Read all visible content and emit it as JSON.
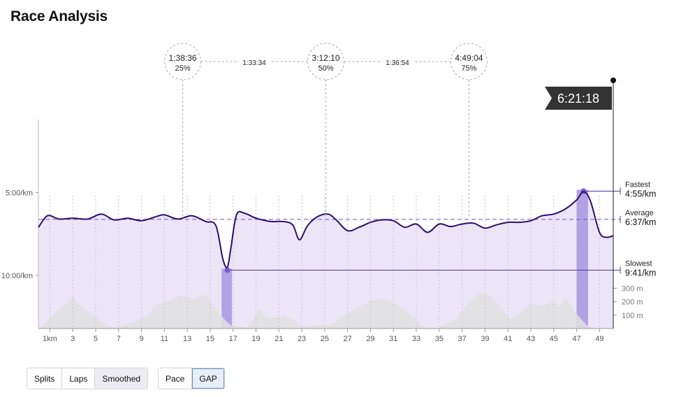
{
  "page": {
    "title": "Race Analysis"
  },
  "controls": {
    "view_buttons": [
      "Splits",
      "Laps",
      "Smoothed"
    ],
    "metric_buttons": [
      "Pace",
      "GAP"
    ],
    "active_view": "Smoothed",
    "active_metric": "GAP"
  },
  "chart_data": {
    "type": "line",
    "title": "",
    "x_unit": "km",
    "xlim": [
      0,
      50.2
    ],
    "x_ticks": [
      1,
      3,
      5,
      7,
      9,
      11,
      13,
      15,
      17,
      19,
      21,
      23,
      25,
      27,
      29,
      31,
      33,
      35,
      37,
      39,
      41,
      43,
      45,
      47,
      49
    ],
    "x_tick_labels": [
      "1km",
      "3",
      "5",
      "7",
      "9",
      "11",
      "13",
      "15",
      "17",
      "19",
      "21",
      "23",
      "25",
      "27",
      "29",
      "31",
      "33",
      "35",
      "37",
      "39",
      "41",
      "43",
      "45",
      "47",
      "49"
    ],
    "y_axis": {
      "unit": "min/km",
      "inverted": true,
      "ticks": [
        {
          "value": 5.0,
          "label": "5:00/km"
        },
        {
          "value": 10.0,
          "label": "10:00/km"
        }
      ],
      "ylim": [
        0.6,
        13.2
      ]
    },
    "pace_series": {
      "name": "GAP",
      "color": "#2a0f6e",
      "fill": "#ece5f8",
      "points": [
        [
          0,
          7.1
        ],
        [
          0.8,
          6.4
        ],
        [
          1.8,
          6.6
        ],
        [
          3,
          6.55
        ],
        [
          4.3,
          6.6
        ],
        [
          5.5,
          6.3
        ],
        [
          6.6,
          6.65
        ],
        [
          7.8,
          6.55
        ],
        [
          9,
          6.7
        ],
        [
          10.3,
          6.45
        ],
        [
          11,
          6.35
        ],
        [
          12.2,
          6.6
        ],
        [
          13.4,
          6.4
        ],
        [
          14.6,
          6.75
        ],
        [
          15.5,
          7.0
        ],
        [
          16.1,
          9.0
        ],
        [
          16.5,
          9.5
        ],
        [
          16.8,
          8.4
        ],
        [
          17.3,
          6.35
        ],
        [
          18,
          6.25
        ],
        [
          19,
          6.55
        ],
        [
          20.3,
          6.75
        ],
        [
          21.3,
          6.75
        ],
        [
          22.2,
          6.95
        ],
        [
          22.8,
          7.85
        ],
        [
          23.5,
          7.0
        ],
        [
          24.4,
          6.45
        ],
        [
          25.3,
          6.3
        ],
        [
          26,
          6.65
        ],
        [
          27,
          7.3
        ],
        [
          28,
          7.1
        ],
        [
          29,
          6.8
        ],
        [
          30,
          6.65
        ],
        [
          31,
          6.7
        ],
        [
          32,
          7.1
        ],
        [
          33,
          6.9
        ],
        [
          34,
          7.4
        ],
        [
          35,
          6.9
        ],
        [
          36,
          7.05
        ],
        [
          37,
          6.9
        ],
        [
          38,
          6.85
        ],
        [
          39,
          7.15
        ],
        [
          40,
          6.95
        ],
        [
          41,
          6.8
        ],
        [
          42,
          6.8
        ],
        [
          43,
          6.7
        ],
        [
          44,
          6.4
        ],
        [
          45,
          6.3
        ],
        [
          46,
          6.0
        ],
        [
          47,
          5.45
        ],
        [
          47.6,
          4.95
        ],
        [
          48.2,
          5.5
        ],
        [
          49,
          7.4
        ],
        [
          49.6,
          7.7
        ],
        [
          50.2,
          7.6
        ]
      ]
    },
    "elevation_series": {
      "name": "Elevation",
      "color": "#e0e0e0",
      "y_unit": "m",
      "ticks": [
        {
          "value": 100,
          "label": "100 m"
        },
        {
          "value": 200,
          "label": "200 m"
        },
        {
          "value": 300,
          "label": "300 m"
        }
      ],
      "ylim": [
        0,
        400
      ],
      "points": [
        [
          0,
          0
        ],
        [
          1.5,
          120
        ],
        [
          2.5,
          190
        ],
        [
          3,
          240
        ],
        [
          3.3,
          200
        ],
        [
          4,
          145
        ],
        [
          5.5,
          60
        ],
        [
          6.2,
          15
        ],
        [
          6.8,
          5
        ],
        [
          7.5,
          30
        ],
        [
          8.5,
          55
        ],
        [
          9.5,
          100
        ],
        [
          10.2,
          170
        ],
        [
          11.5,
          210
        ],
        [
          12.5,
          250
        ],
        [
          13.5,
          220
        ],
        [
          14.5,
          255
        ],
        [
          15.3,
          175
        ],
        [
          16.1,
          80
        ],
        [
          16.8,
          25
        ],
        [
          17.5,
          15
        ],
        [
          18.2,
          5
        ],
        [
          18.7,
          60
        ],
        [
          19.3,
          150
        ],
        [
          19.7,
          95
        ],
        [
          20.3,
          75
        ],
        [
          21.3,
          95
        ],
        [
          22.3,
          65
        ],
        [
          23,
          15
        ],
        [
          24,
          25
        ],
        [
          25.5,
          30
        ],
        [
          26.5,
          90
        ],
        [
          28,
          160
        ],
        [
          29,
          210
        ],
        [
          30,
          220
        ],
        [
          31,
          195
        ],
        [
          32,
          140
        ],
        [
          33,
          60
        ],
        [
          33.8,
          5
        ],
        [
          35,
          5
        ],
        [
          36.5,
          80
        ],
        [
          37.5,
          180
        ],
        [
          38.5,
          270
        ],
        [
          39.5,
          245
        ],
        [
          40.5,
          150
        ],
        [
          41.2,
          70
        ],
        [
          42,
          110
        ],
        [
          43,
          190
        ],
        [
          44,
          165
        ],
        [
          45,
          205
        ],
        [
          45.5,
          160
        ],
        [
          46,
          230
        ],
        [
          47,
          110
        ],
        [
          48,
          15
        ],
        [
          48.8,
          0
        ],
        [
          50.2,
          0
        ]
      ]
    },
    "reference_lines": [
      {
        "name": "Fastest",
        "label": "Fastest",
        "value_label": "4:55/km",
        "value": 4.92,
        "at_km": 47.6
      },
      {
        "name": "Average",
        "label": "Average",
        "value_label": "6:37/km",
        "value": 6.62,
        "style": "dashed"
      },
      {
        "name": "Slowest",
        "label": "Slowest",
        "value_label": "9:41/km",
        "value": 9.68,
        "at_km": 16.5
      }
    ],
    "highlight_bands": [
      {
        "from_km": 16.0,
        "to_km": 16.9,
        "color": "#a796e0"
      },
      {
        "from_km": 47.0,
        "to_km": 48.0,
        "color": "#a796e0"
      }
    ],
    "splits": [
      {
        "at_km": 12.6,
        "time": "1:38:36",
        "percent": "25%"
      },
      {
        "at_km": 25.1,
        "time": "3:12:10",
        "percent": "50%"
      },
      {
        "at_km": 37.6,
        "time": "4:49:04",
        "percent": "75%"
      }
    ],
    "split_intervals": [
      "1:33:34",
      "1:36:54"
    ],
    "finish": {
      "at_km": 50.2,
      "time": "6:21:18"
    },
    "grid": {
      "vertical_dotted": true,
      "horizontal": false
    },
    "legend": "none"
  }
}
